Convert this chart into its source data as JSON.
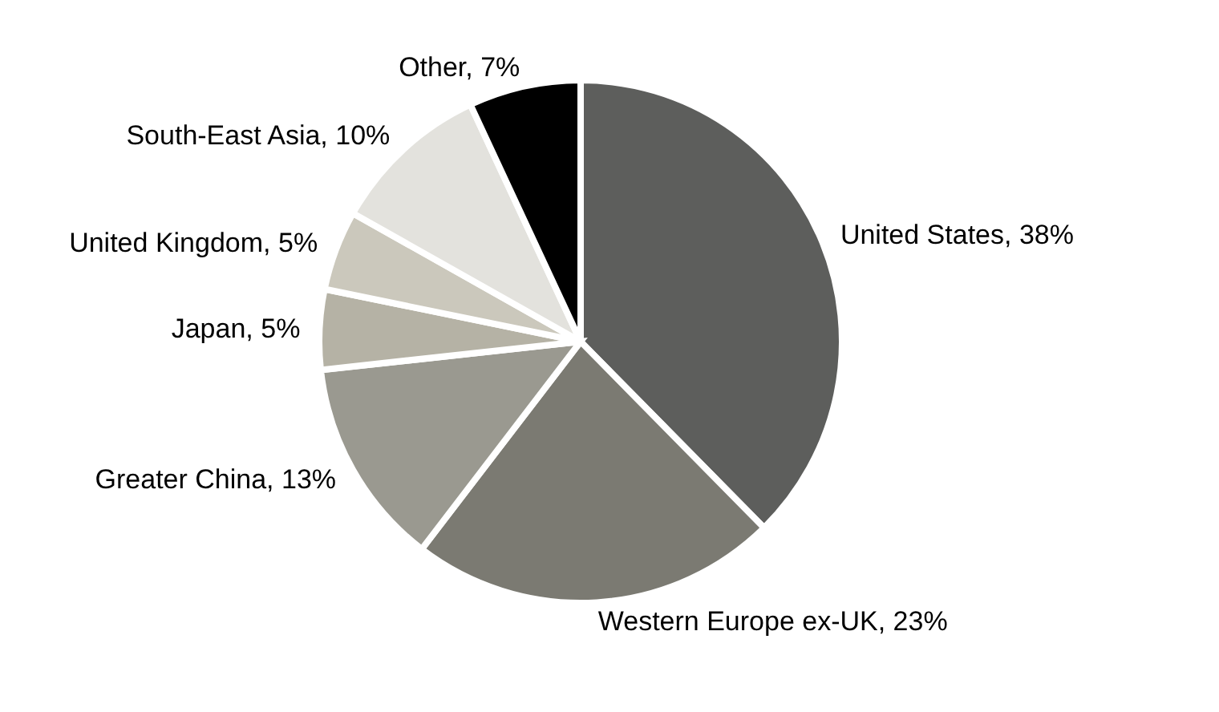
{
  "chart_data": {
    "type": "pie",
    "categories": [
      "United States",
      "Western Europe ex-UK",
      "Greater China",
      "Japan",
      "United Kingdom",
      "South-East Asia",
      "Other"
    ],
    "values": [
      38,
      23,
      13,
      5,
      5,
      10,
      7
    ],
    "value_labels": [
      "38%",
      "23%",
      "13%",
      "5%",
      "5%",
      "10%",
      "7%"
    ],
    "colors": [
      "#5d5e5c",
      "#7b7a72",
      "#9a9990",
      "#b5b2a5",
      "#cbc8bc",
      "#e3e2dd",
      "#000000"
    ]
  }
}
